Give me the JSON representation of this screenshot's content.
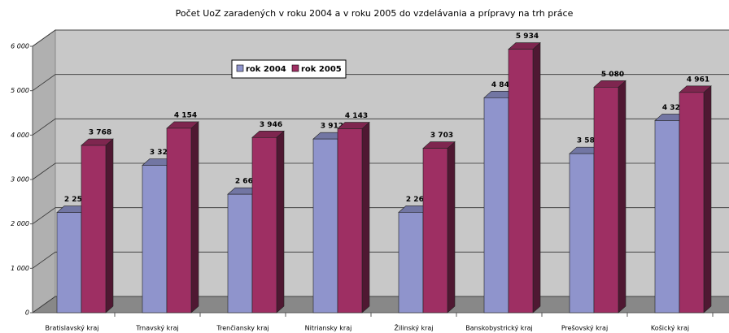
{
  "chart_data": {
    "type": "bar3d",
    "title": "Počet UoZ zaradených v roku 2004 a v roku 2005 do vzdelávania a prípravy na trh práce",
    "categories": [
      "Bratislavský kraj",
      "Trnavský kraj",
      "Trenčiansky kraj",
      "Nitriansky kraj",
      "Žilinský kraj",
      "Banskobystrický kraj",
      "Prešovský kraj",
      "Košický kraj"
    ],
    "series": [
      {
        "name": "rok 2004",
        "color": "#8f94cc",
        "values": [
          2258,
          3320,
          2668,
          3912,
          2261,
          4842,
          3582,
          4327
        ],
        "value_labels": [
          "2 258",
          "3 320",
          "2 668",
          "3 912",
          "2 261",
          "4 842",
          "3 582",
          "4 327"
        ]
      },
      {
        "name": "rok 2005",
        "color": "#9e2f63",
        "values": [
          3768,
          4154,
          3946,
          4143,
          3703,
          5934,
          5080,
          4961
        ],
        "value_labels": [
          "3 768",
          "4 154",
          "3 946",
          "4 143",
          "3 703",
          "5 934",
          "5 080",
          "4 961"
        ]
      }
    ],
    "ylim": [
      0,
      6000
    ],
    "yticks": [
      0,
      {
        "value": 1000,
        "label": "1 000"
      },
      {
        "value": 2000,
        "label": "2 000"
      },
      {
        "value": 3000,
        "label": "3 000"
      },
      {
        "value": 4000,
        "label": "4 000"
      },
      {
        "value": 5000,
        "label": "5 000"
      },
      {
        "value": 6000,
        "label": "6 000"
      }
    ],
    "grid": true,
    "legend": "top-center"
  }
}
